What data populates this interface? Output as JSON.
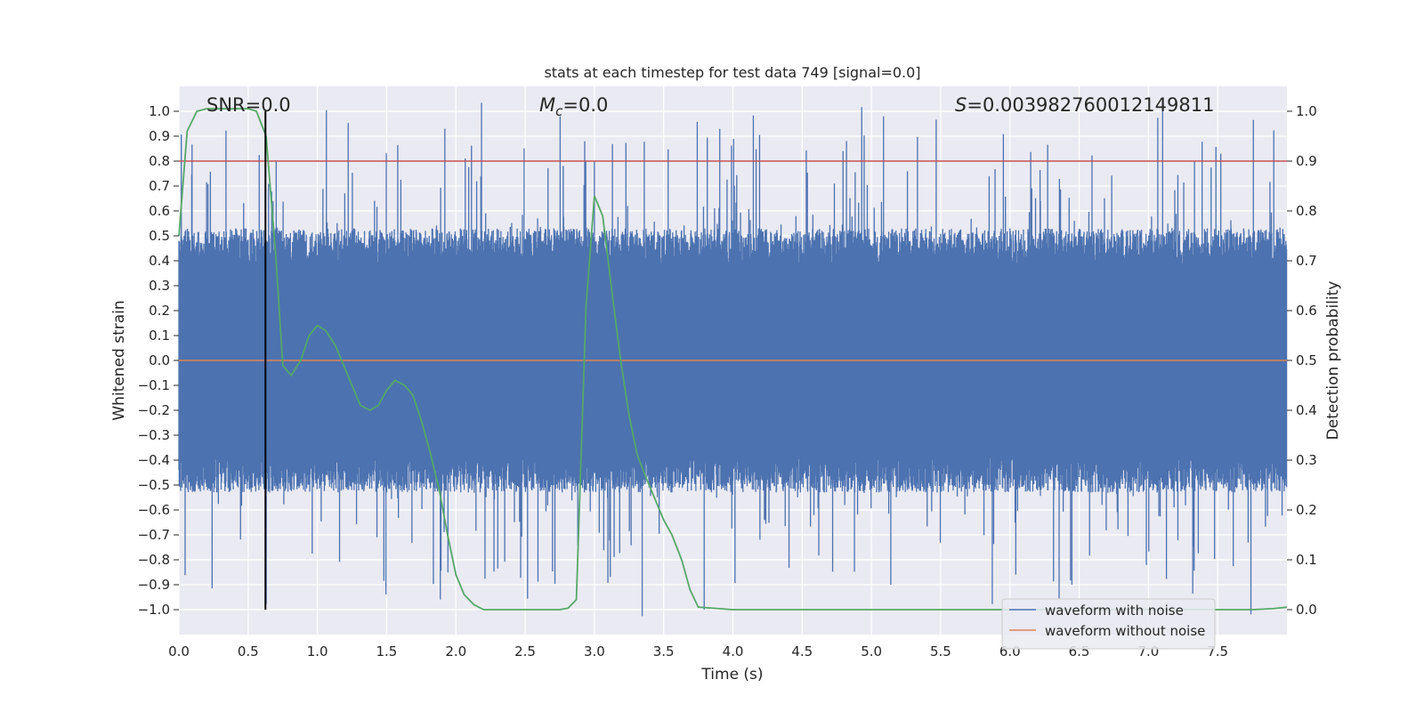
{
  "chart_data": {
    "type": "line",
    "title": "stats at each timestep for test data 749 [signal=0.0]",
    "xlabel": "Time (s)",
    "ylabel": "Whitened strain",
    "y2label": "Detection probability",
    "xlim": [
      0.0,
      8.0
    ],
    "ylim": [
      -1.1,
      1.1
    ],
    "y2lim": [
      -0.05,
      1.05
    ],
    "x_ticks": [
      0.0,
      0.5,
      1.0,
      1.5,
      2.0,
      2.5,
      3.0,
      3.5,
      4.0,
      4.5,
      5.0,
      5.5,
      6.0,
      6.5,
      7.0,
      7.5
    ],
    "x_tick_labels": [
      "0.0",
      "0.5",
      "1.0",
      "1.5",
      "2.0",
      "2.5",
      "3.0",
      "3.5",
      "4.0",
      "4.5",
      "5.0",
      "5.5",
      "6.0",
      "6.5",
      "7.0",
      "7.5"
    ],
    "y_ticks": [
      1.0,
      0.9,
      0.8,
      0.7,
      0.6,
      0.5,
      0.4,
      0.3,
      0.2,
      0.1,
      0.0,
      -0.1,
      -0.2,
      -0.3,
      -0.4,
      -0.5,
      -0.6,
      -0.7,
      -0.8,
      -0.9,
      -1.0
    ],
    "y_tick_labels": [
      "1.0",
      "0.9",
      "0.8",
      "0.7",
      "0.6",
      "0.5",
      "0.4",
      "0.3",
      "0.2",
      "0.1",
      "0.0",
      "−0.1",
      "−0.2",
      "−0.3",
      "−0.4",
      "−0.5",
      "−0.6",
      "−0.7",
      "−0.8",
      "−0.9",
      "−1.0"
    ],
    "y2_ticks": [
      1.0,
      0.9,
      0.8,
      0.7,
      0.6,
      0.5,
      0.4,
      0.3,
      0.2,
      0.1,
      0.0
    ],
    "y2_tick_labels": [
      "1.0",
      "0.9",
      "0.8",
      "0.7",
      "0.6",
      "0.5",
      "0.4",
      "0.3",
      "0.2",
      "0.1",
      "0.0"
    ],
    "grid": true,
    "annotations": {
      "snr": "SNR=0.0",
      "mc_symbol": "M",
      "mc_sub": "c",
      "mc_value": "=0.0",
      "s_symbol": "S",
      "s_value": "=0.003982760012149811"
    },
    "threshold_y2": 0.9,
    "marker_x": 0.625,
    "marker_y_range": [
      -1.0,
      1.0
    ],
    "noisy_waveform": {
      "name": "waveform with noise",
      "approx_core_amplitude": 0.4,
      "approx_peak_amplitude": 0.95
    },
    "clean_waveform": {
      "name": "waveform without noise",
      "value": 0.0
    },
    "detection_probability": {
      "x": [
        0.0,
        0.06,
        0.13,
        0.2,
        0.3,
        0.4,
        0.5,
        0.56,
        0.63,
        0.7,
        0.75,
        0.81,
        0.88,
        0.94,
        1.0,
        1.06,
        1.13,
        1.19,
        1.25,
        1.31,
        1.38,
        1.44,
        1.5,
        1.56,
        1.63,
        1.69,
        1.75,
        1.81,
        1.88,
        1.94,
        2.0,
        2.06,
        2.13,
        2.2,
        2.5,
        2.75,
        2.81,
        2.87,
        2.94,
        3.0,
        3.06,
        3.13,
        3.19,
        3.25,
        3.31,
        3.38,
        3.44,
        3.5,
        3.56,
        3.63,
        3.69,
        3.75,
        4.0,
        5.0,
        6.0,
        7.0,
        7.5,
        7.75,
        7.9,
        8.0
      ],
      "y": [
        0.75,
        0.96,
        1.0,
        1.005,
        1.005,
        1.005,
        1.005,
        1.0,
        0.95,
        0.71,
        0.49,
        0.47,
        0.5,
        0.55,
        0.57,
        0.56,
        0.53,
        0.49,
        0.45,
        0.41,
        0.4,
        0.41,
        0.44,
        0.46,
        0.45,
        0.43,
        0.38,
        0.32,
        0.24,
        0.15,
        0.07,
        0.03,
        0.01,
        0.0,
        0.0,
        0.0,
        0.003,
        0.02,
        0.61,
        0.83,
        0.79,
        0.63,
        0.5,
        0.39,
        0.31,
        0.26,
        0.22,
        0.18,
        0.15,
        0.1,
        0.04,
        0.005,
        0.0,
        0.0,
        0.0,
        0.0,
        0.0,
        0.0,
        0.002,
        0.005
      ]
    },
    "legend": {
      "position": "lower-right",
      "entries": [
        {
          "label": "waveform with noise",
          "color": "#4c72b0"
        },
        {
          "label": "waveform without noise",
          "color": "#dd8452"
        }
      ]
    },
    "colors": {
      "noisy": "#4c72b0",
      "clean": "#dd8452",
      "probability": "#55a868",
      "threshold": "#c44e52",
      "marker": "#000000",
      "background": "#eaeaf2",
      "grid": "#ffffff"
    }
  }
}
